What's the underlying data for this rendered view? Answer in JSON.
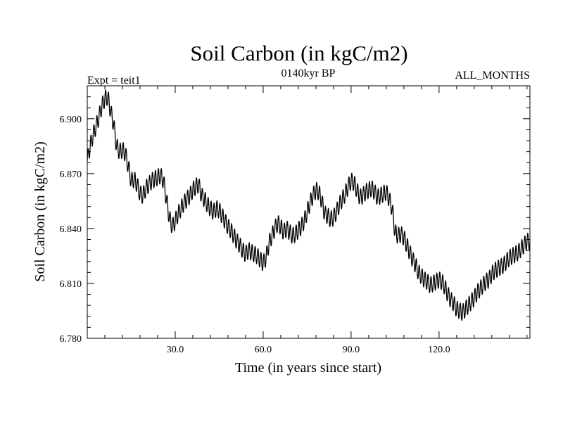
{
  "chart_data": {
    "type": "line",
    "title": "Soil Carbon (in kgC/m2)",
    "subtitle_left": "Expt = teit1",
    "subtitle_center": "0140kyr BP",
    "subtitle_right": "ALL_MONTHS",
    "xlabel": "Time (in years since start)",
    "ylabel": "Soil Carbon (in kgC/m2)",
    "xlim": [
      0,
      151
    ],
    "ylim": [
      6.78,
      6.918
    ],
    "x_ticks": [
      30,
      60,
      90,
      120
    ],
    "x_tick_labels": [
      "30.0",
      "60.0",
      "90.0",
      "120.0"
    ],
    "y_ticks": [
      6.78,
      6.81,
      6.84,
      6.87,
      6.9
    ],
    "y_tick_labels": [
      "6.780",
      "6.810",
      "6.840",
      "6.870",
      "6.900"
    ],
    "grid": false,
    "series": [
      {
        "name": "Soil Carbon",
        "seasonal_amplitude": 0.0045,
        "x": [
          0,
          1,
          2,
          3,
          4,
          5,
          6,
          7,
          8,
          9,
          10,
          11,
          12,
          13,
          14,
          15,
          16,
          17,
          18,
          19,
          20,
          21,
          22,
          23,
          24,
          25,
          26,
          27,
          28,
          29,
          30,
          31,
          32,
          33,
          34,
          35,
          36,
          37,
          38,
          39,
          40,
          41,
          42,
          43,
          44,
          45,
          46,
          47,
          48,
          49,
          50,
          51,
          52,
          53,
          54,
          55,
          56,
          57,
          58,
          59,
          60,
          61,
          62,
          63,
          64,
          65,
          66,
          67,
          68,
          69,
          70,
          71,
          72,
          73,
          74,
          75,
          76,
          77,
          78,
          79,
          80,
          81,
          82,
          83,
          84,
          85,
          86,
          87,
          88,
          89,
          90,
          91,
          92,
          93,
          94,
          95,
          96,
          97,
          98,
          99,
          100,
          101,
          102,
          103,
          104,
          105,
          106,
          107,
          108,
          109,
          110,
          111,
          112,
          113,
          114,
          115,
          116,
          117,
          118,
          119,
          120,
          121,
          122,
          123,
          124,
          125,
          126,
          127,
          128,
          129,
          130,
          131,
          132,
          133,
          134,
          135,
          136,
          137,
          138,
          139,
          140,
          141,
          142,
          143,
          144,
          145,
          146,
          147,
          148,
          149,
          150,
          151
        ],
        "values": [
          6.877,
          6.885,
          6.891,
          6.896,
          6.901,
          6.907,
          6.911,
          6.912,
          6.904,
          6.897,
          6.885,
          6.882,
          6.883,
          6.881,
          6.874,
          6.866,
          6.867,
          6.864,
          6.859,
          6.858,
          6.862,
          6.864,
          6.866,
          6.867,
          6.868,
          6.869,
          6.866,
          6.856,
          6.846,
          6.841,
          6.844,
          6.848,
          6.851,
          6.854,
          6.856,
          6.858,
          6.861,
          6.863,
          6.864,
          6.858,
          6.856,
          6.853,
          6.851,
          6.849,
          6.851,
          6.85,
          6.847,
          6.844,
          6.841,
          6.839,
          6.836,
          6.833,
          6.831,
          6.828,
          6.826,
          6.828,
          6.827,
          6.826,
          6.825,
          6.823,
          6.821,
          6.824,
          6.832,
          6.836,
          6.84,
          6.843,
          6.841,
          6.838,
          6.84,
          6.838,
          6.836,
          6.837,
          6.839,
          6.841,
          6.844,
          6.849,
          6.854,
          6.858,
          6.861,
          6.86,
          6.855,
          6.848,
          6.847,
          6.845,
          6.846,
          6.849,
          6.853,
          6.856,
          6.859,
          6.863,
          6.866,
          6.865,
          6.861,
          6.857,
          6.858,
          6.86,
          6.861,
          6.862,
          6.86,
          6.857,
          6.858,
          6.859,
          6.86,
          6.856,
          6.851,
          6.838,
          6.836,
          6.837,
          6.835,
          6.831,
          6.827,
          6.823,
          6.82,
          6.816,
          6.814,
          6.812,
          6.811,
          6.809,
          6.81,
          6.811,
          6.812,
          6.811,
          6.808,
          6.804,
          6.801,
          6.799,
          6.796,
          6.795,
          6.794,
          6.796,
          6.798,
          6.8,
          6.802,
          6.805,
          6.807,
          6.809,
          6.811,
          6.812,
          6.815,
          6.817,
          6.818,
          6.819,
          6.82,
          6.822,
          6.824,
          6.825,
          6.826,
          6.827,
          6.829,
          6.831,
          6.833,
          6.833
        ]
      }
    ]
  }
}
